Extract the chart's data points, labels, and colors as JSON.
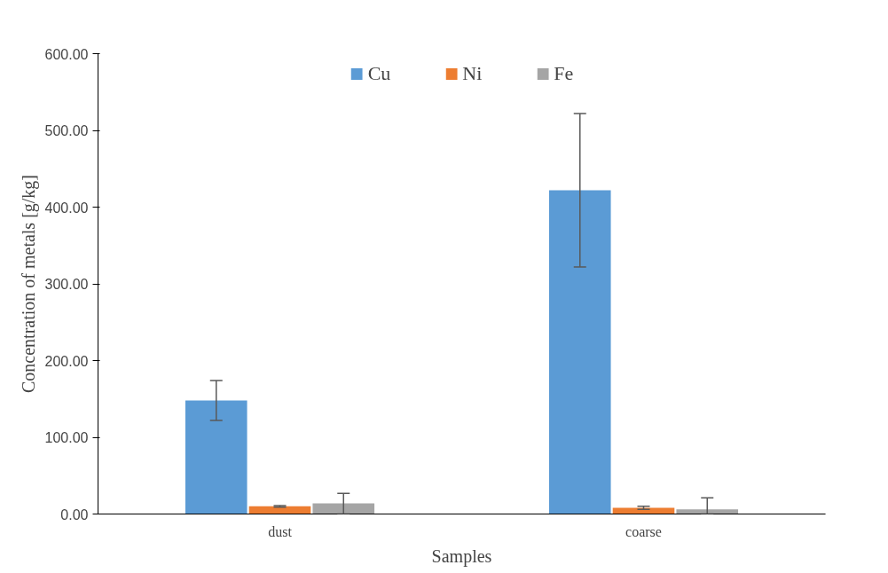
{
  "chart_data": {
    "type": "bar",
    "xlabel": "Samples",
    "ylabel": "Concentration of metals [g/kg]",
    "categories": [
      "dust",
      "coarse"
    ],
    "series": [
      {
        "name": "Cu",
        "color": "#5b9bd5",
        "values": [
          148,
          422
        ],
        "errors": [
          26,
          100
        ]
      },
      {
        "name": "Ni",
        "color": "#ed7d31",
        "values": [
          10,
          8
        ],
        "errors": [
          1,
          2
        ]
      },
      {
        "name": "Fe",
        "color": "#a5a5a5",
        "values": [
          14,
          6
        ],
        "errors": [
          [
            0,
            27
          ],
          [
            0,
            21
          ]
        ]
      }
    ],
    "ylim": [
      0,
      600
    ],
    "yticks": [
      {
        "value": 0,
        "label": "0.00"
      },
      {
        "value": 100,
        "label": "100.00"
      },
      {
        "value": 200,
        "label": "200.00"
      },
      {
        "value": 300,
        "label": "300.00"
      },
      {
        "value": 400,
        "label": "400.00"
      },
      {
        "value": 500,
        "label": "500.00"
      },
      {
        "value": 600,
        "label": "600.00"
      }
    ],
    "grid": false,
    "legend": "top"
  }
}
